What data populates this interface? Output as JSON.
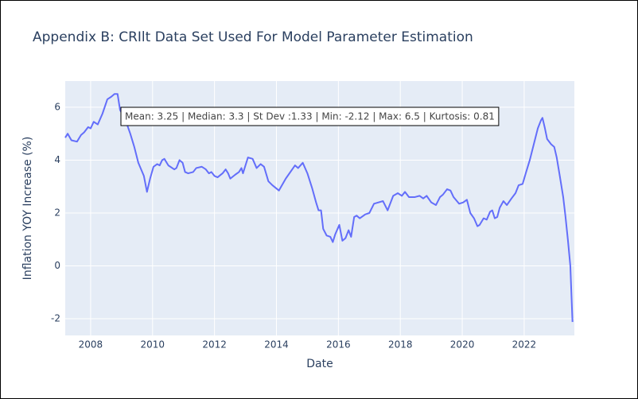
{
  "chart_data": {
    "type": "line",
    "title": "Appendix B: CRIlt Data Set Used For Model Parameter Estimation",
    "x_label": "Date",
    "y_label": "Inflation YOY Increase (%)",
    "annotation": "Mean: 3.25 | Median: 3.3 | St Dev :1.33 | Min: -2.12 | Max: 6.5 | Kurtosis: 0.81",
    "color": "#636efa",
    "grid": true,
    "xlim": [
      2007.18,
      2023.62
    ],
    "ylim": [
      -2.63,
      6.99
    ],
    "xticks": [
      2008,
      2010,
      2012,
      2014,
      2016,
      2018,
      2020,
      2022
    ],
    "yticks": [
      -2,
      0,
      2,
      4,
      6
    ],
    "x": [
      2007.18,
      2007.26,
      2007.38,
      2007.56,
      2007.69,
      2007.79,
      2007.92,
      2008.0,
      2008.1,
      2008.23,
      2008.38,
      2008.54,
      2008.67,
      2008.77,
      2008.87,
      2008.95,
      2009.13,
      2009.28,
      2009.41,
      2009.54,
      2009.72,
      2009.82,
      2009.92,
      2010.03,
      2010.15,
      2010.23,
      2010.31,
      2010.38,
      2010.51,
      2010.7,
      2010.77,
      2010.87,
      2010.97,
      2011.05,
      2011.15,
      2011.31,
      2011.41,
      2011.59,
      2011.72,
      2011.82,
      2011.9,
      2012.0,
      2012.1,
      2012.26,
      2012.36,
      2012.44,
      2012.51,
      2012.67,
      2012.79,
      2012.87,
      2012.92,
      2013.08,
      2013.23,
      2013.36,
      2013.49,
      2013.6,
      2013.74,
      2013.87,
      2014.08,
      2014.3,
      2014.6,
      2014.7,
      2014.85,
      2015.0,
      2015.15,
      2015.28,
      2015.36,
      2015.44,
      2015.51,
      2015.62,
      2015.74,
      2015.82,
      2015.9,
      2016.03,
      2016.13,
      2016.23,
      2016.33,
      2016.41,
      2016.51,
      2016.59,
      2016.69,
      2016.87,
      2017.0,
      2017.15,
      2017.44,
      2017.59,
      2017.77,
      2017.92,
      2018.05,
      2018.15,
      2018.28,
      2018.46,
      2018.62,
      2018.74,
      2018.85,
      2019.0,
      2019.15,
      2019.28,
      2019.38,
      2019.51,
      2019.62,
      2019.72,
      2019.9,
      2020.03,
      2020.15,
      2020.26,
      2020.38,
      2020.49,
      2020.56,
      2020.69,
      2020.79,
      2020.9,
      2020.97,
      2021.05,
      2021.13,
      2021.21,
      2021.33,
      2021.44,
      2021.59,
      2021.72,
      2021.82,
      2021.95,
      2022.05,
      2022.18,
      2022.31,
      2022.44,
      2022.54,
      2022.59,
      2022.67,
      2022.74,
      2022.87,
      2022.97,
      2023.05,
      2023.15,
      2023.26,
      2023.33,
      2023.41,
      2023.49,
      2023.56
    ],
    "values": [
      4.85,
      5.0,
      4.75,
      4.7,
      4.95,
      5.05,
      5.25,
      5.2,
      5.45,
      5.35,
      5.75,
      6.3,
      6.4,
      6.5,
      6.5,
      5.9,
      5.5,
      5.0,
      4.5,
      3.9,
      3.4,
      2.8,
      3.3,
      3.75,
      3.85,
      3.8,
      4.0,
      4.05,
      3.8,
      3.65,
      3.7,
      4.0,
      3.9,
      3.55,
      3.5,
      3.55,
      3.7,
      3.75,
      3.65,
      3.5,
      3.55,
      3.4,
      3.35,
      3.5,
      3.65,
      3.5,
      3.3,
      3.45,
      3.55,
      3.7,
      3.5,
      4.1,
      4.05,
      3.7,
      3.85,
      3.75,
      3.2,
      3.05,
      2.85,
      3.3,
      3.8,
      3.7,
      3.9,
      3.5,
      2.95,
      2.4,
      2.1,
      2.1,
      1.4,
      1.15,
      1.1,
      0.9,
      1.2,
      1.55,
      0.95,
      1.05,
      1.35,
      1.1,
      1.85,
      1.9,
      1.8,
      1.95,
      2.0,
      2.35,
      2.45,
      2.1,
      2.65,
      2.75,
      2.65,
      2.8,
      2.6,
      2.6,
      2.65,
      2.55,
      2.65,
      2.4,
      2.3,
      2.6,
      2.7,
      2.9,
      2.85,
      2.6,
      2.35,
      2.4,
      2.5,
      2.0,
      1.8,
      1.5,
      1.55,
      1.8,
      1.75,
      2.05,
      2.1,
      1.8,
      1.85,
      2.2,
      2.45,
      2.3,
      2.55,
      2.75,
      3.05,
      3.1,
      3.5,
      4.0,
      4.6,
      5.2,
      5.5,
      5.6,
      5.2,
      4.8,
      4.6,
      4.5,
      4.1,
      3.4,
      2.6,
      1.9,
      1.0,
      0.0,
      -2.12
    ]
  }
}
